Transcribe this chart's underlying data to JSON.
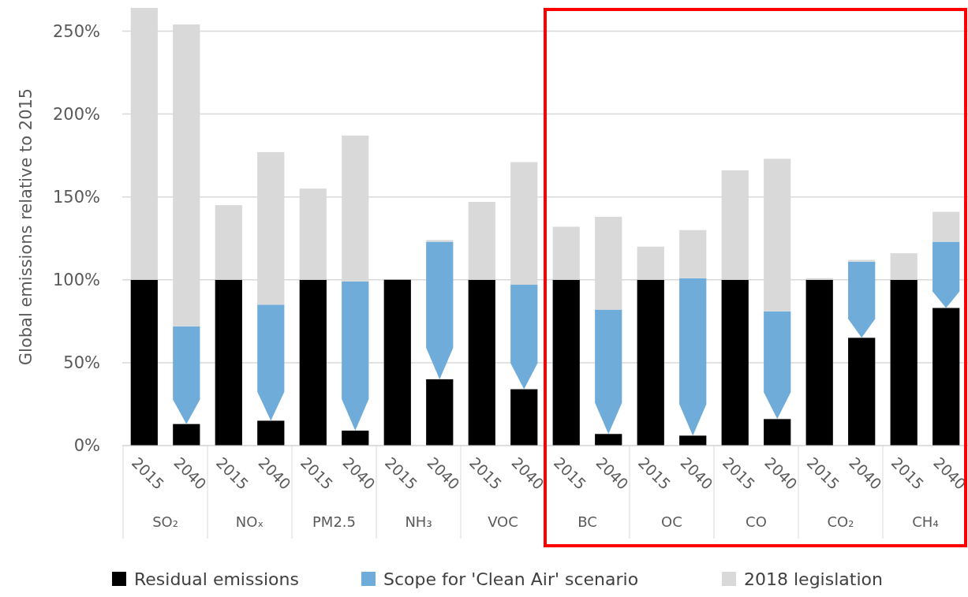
{
  "chart_data": {
    "type": "bar",
    "stacked": true,
    "ylabel": "Global emissions relative to 2015",
    "categories": [
      "2015",
      "2040",
      "2015",
      "2040",
      "2015",
      "2040",
      "2015",
      "2040",
      "2015",
      "2040",
      "2015",
      "2040",
      "2015",
      "2040",
      "2015",
      "2040",
      "2015",
      "2040",
      "2015",
      "2040"
    ],
    "annotations": [
      "SO₂",
      "NOₓ",
      "PM2.5",
      "NH₃",
      "VOC",
      "BC",
      "OC",
      "CO",
      "CO₂",
      "CH₄"
    ],
    "series": [
      {
        "name": "Residual emissions",
        "color": "#000000",
        "values": [
          100,
          13,
          100,
          15,
          100,
          9,
          100,
          40,
          100,
          34,
          100,
          7,
          100,
          6,
          100,
          16,
          100,
          65,
          100,
          83
        ]
      },
      {
        "name": "Scope for 'Clean Air' scenario",
        "color": "#70acd9",
        "values": [
          0,
          59,
          0,
          70,
          0,
          90,
          0,
          83,
          0,
          63,
          0,
          75,
          0,
          95,
          0,
          65,
          0,
          46,
          0,
          40
        ]
      },
      {
        "name": "2018 legislation",
        "color": "#d9d9d9",
        "values": [
          164,
          182,
          45,
          92,
          55,
          88,
          0,
          1,
          47,
          74,
          32,
          56,
          20,
          29,
          66,
          92,
          1,
          1,
          16,
          18
        ]
      }
    ],
    "ylim": [
      0,
      264
    ],
    "yticks": [
      {
        "value": 0,
        "label": "0%"
      },
      {
        "value": 50,
        "label": "50%"
      },
      {
        "value": 100,
        "label": "100%"
      },
      {
        "value": 150,
        "label": "150%"
      },
      {
        "value": 200,
        "label": "200%"
      },
      {
        "value": 250,
        "label": "250%"
      }
    ],
    "grid": "y",
    "legend": "bottom"
  }
}
